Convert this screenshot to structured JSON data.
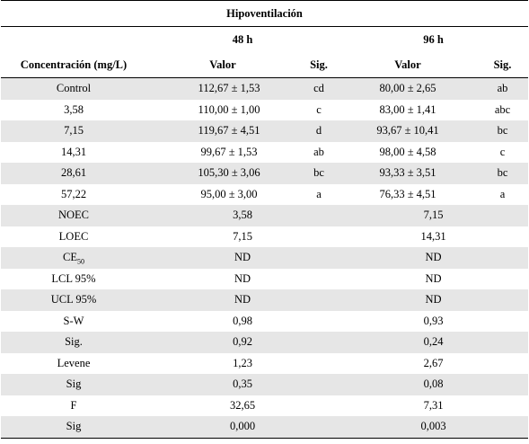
{
  "title": "Hipoventilación",
  "periods": [
    "48 h",
    "96 h"
  ],
  "headers": {
    "concentration": "Concentración (mg/L)",
    "valor_48": "Valor",
    "sig_48": "Sig.",
    "valor_96": "Valor",
    "sig_96": "Sig."
  },
  "rows": [
    {
      "label": "Control",
      "v48": "112,67 ± 1,53",
      "s48": "cd",
      "v96": "80,00 ± 2,65",
      "s96": "ab"
    },
    {
      "label": "3,58",
      "v48": "110,00 ± 1,00",
      "s48": "c",
      "v96": "83,00 ± 1,41",
      "s96": "abc"
    },
    {
      "label": "7,15",
      "v48": "119,67 ± 4,51",
      "s48": "d",
      "v96": "93,67 ± 10,41",
      "s96": "bc"
    },
    {
      "label": "14,31",
      "v48": "99,67 ± 1,53",
      "s48": "ab",
      "v96": "98,00 ± 4,58",
      "s96": "c"
    },
    {
      "label": "28,61",
      "v48": "105,30 ± 3,06",
      "s48": "bc",
      "v96": "93,33 ± 3,51",
      "s96": "bc"
    },
    {
      "label": "57,22",
      "v48": "95,00 ± 3,00",
      "s48": "a",
      "v96": "76,33 ± 4,51",
      "s96": "a"
    }
  ],
  "stats": [
    {
      "label": "NOEC",
      "v48": "3,58",
      "v96": "7,15"
    },
    {
      "label": "LOEC",
      "v48": "7,15",
      "v96": "14,31"
    },
    {
      "label": "CE",
      "sub": "50",
      "v48": "ND",
      "v96": "ND"
    },
    {
      "label": "LCL 95%",
      "v48": "ND",
      "v96": "ND"
    },
    {
      "label": "UCL 95%",
      "v48": "ND",
      "v96": "ND"
    },
    {
      "label": "S-W",
      "v48": "0,98",
      "v96": "0,93"
    },
    {
      "label": "Sig.",
      "v48": "0,92",
      "v96": "0,24"
    },
    {
      "label": "Levene",
      "v48": "1,23",
      "v96": "2,67"
    },
    {
      "label": "Sig",
      "v48": "0,35",
      "v96": "0,08"
    },
    {
      "label": "F",
      "v48": "32,65",
      "v96": "7,31"
    },
    {
      "label": "Sig",
      "v48": "0,000",
      "v96": "0,003"
    }
  ]
}
